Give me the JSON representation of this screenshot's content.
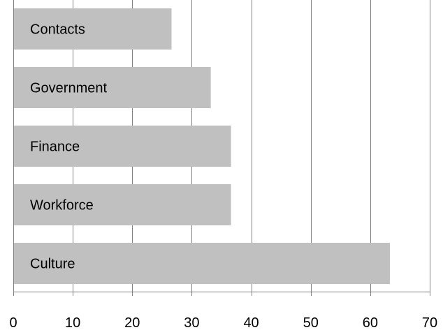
{
  "chart_data": {
    "type": "bar",
    "orientation": "horizontal",
    "categories": [
      "Contacts",
      "Government",
      "Finance",
      "Workforce",
      "Culture"
    ],
    "values": [
      26.6,
      33.2,
      36.6,
      36.6,
      63.3
    ],
    "title": "",
    "xlabel": "",
    "ylabel": "",
    "xlim": [
      0,
      70
    ],
    "xticks": [
      "0",
      "10",
      "20",
      "30",
      "40",
      "50",
      "60",
      "70"
    ],
    "grid": "vertical",
    "legend": "none",
    "bar_color": "#c0c0c0",
    "grid_color": "#808080"
  }
}
